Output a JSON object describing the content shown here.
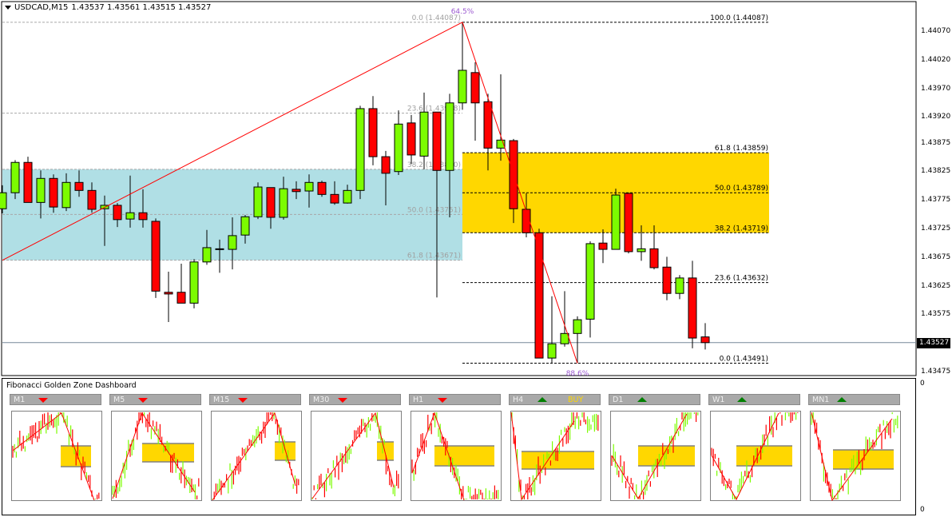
{
  "header": {
    "symbol": "USDCAD,M15",
    "ohlc": "1.43537 1.43561 1.43515 1.43527"
  },
  "colors": {
    "bull": "#7cfc00",
    "bear": "#ff0000",
    "zone_left": "#b0dfe5",
    "zone_right": "#ffd700",
    "zigzag": "#ff0000",
    "percent_label": "#9b59d0"
  },
  "chart_data": {
    "type": "candlestick",
    "symbol": "USDCAD",
    "timeframe": "M15",
    "ylim": [
      1.43462,
      1.44098
    ],
    "y_ticks": [
      "1.44070",
      "1.44020",
      "1.43970",
      "1.43920",
      "1.43875",
      "1.43825",
      "1.43775",
      "1.43725",
      "1.43675",
      "1.43625",
      "1.43575",
      "1.43475"
    ],
    "current_price": "1.43527",
    "candles": [
      [
        1.43761,
        1.43802,
        1.43753,
        1.43789
      ],
      [
        1.43789,
        1.43846,
        1.43778,
        1.43842
      ],
      [
        1.43842,
        1.43852,
        1.43772,
        1.43772
      ],
      [
        1.43772,
        1.43828,
        1.43744,
        1.43814
      ],
      [
        1.43814,
        1.43821,
        1.43754,
        1.43764
      ],
      [
        1.43763,
        1.43823,
        1.43757,
        1.43807
      ],
      [
        1.43807,
        1.43828,
        1.43782,
        1.43793
      ],
      [
        1.43793,
        1.43807,
        1.43754,
        1.4376
      ],
      [
        1.43761,
        1.43784,
        1.43696,
        1.43767
      ],
      [
        1.43767,
        1.43771,
        1.43729,
        1.43742
      ],
      [
        1.43743,
        1.43819,
        1.43728,
        1.43754
      ],
      [
        1.43754,
        1.43795,
        1.43728,
        1.43742
      ],
      [
        1.43739,
        1.43744,
        1.43605,
        1.43617
      ],
      [
        1.43615,
        1.43651,
        1.43563,
        1.43612
      ],
      [
        1.43615,
        1.43665,
        1.43596,
        1.43596
      ],
      [
        1.43596,
        1.43673,
        1.43587,
        1.43668
      ],
      [
        1.43668,
        1.43724,
        1.43663,
        1.43693
      ],
      [
        1.43691,
        1.43707,
        1.43649,
        1.43691
      ],
      [
        1.4369,
        1.43746,
        1.43655,
        1.43714
      ],
      [
        1.43715,
        1.4375,
        1.437,
        1.43747
      ],
      [
        1.43747,
        1.43807,
        1.43743,
        1.43799
      ],
      [
        1.43798,
        1.43798,
        1.43726,
        1.43746
      ],
      [
        1.43746,
        1.43817,
        1.43742,
        1.43796
      ],
      [
        1.43795,
        1.43809,
        1.43778,
        1.43791
      ],
      [
        1.43792,
        1.43821,
        1.43763,
        1.43807
      ],
      [
        1.43807,
        1.4381,
        1.43782,
        1.43786
      ],
      [
        1.43786,
        1.43809,
        1.43768,
        1.43771
      ],
      [
        1.43771,
        1.43803,
        1.4377,
        1.43793
      ],
      [
        1.43793,
        1.43941,
        1.43778,
        1.43936
      ],
      [
        1.43936,
        1.43958,
        1.43837,
        1.43852
      ],
      [
        1.43852,
        1.43862,
        1.43767,
        1.43823
      ],
      [
        1.43826,
        1.43933,
        1.4382,
        1.43909
      ],
      [
        1.43911,
        1.43925,
        1.43839,
        1.43855
      ],
      [
        1.43853,
        1.43964,
        1.4383,
        1.4393
      ],
      [
        1.4393,
        1.4393,
        1.43606,
        1.43828
      ],
      [
        1.43828,
        1.43962,
        1.43746,
        1.43946
      ],
      [
        1.43946,
        1.44087,
        1.43934,
        1.44003
      ],
      [
        1.43999,
        1.44017,
        1.4388,
        1.43946
      ],
      [
        1.43948,
        1.43962,
        1.43828,
        1.43867
      ],
      [
        1.43867,
        1.43996,
        1.43845,
        1.43881
      ],
      [
        1.4388,
        1.43883,
        1.43736,
        1.43761
      ],
      [
        1.4376,
        1.43788,
        1.43711,
        1.43719
      ],
      [
        1.43719,
        1.43726,
        1.435,
        1.435
      ],
      [
        1.435,
        1.43608,
        1.43491,
        1.43525
      ],
      [
        1.43525,
        1.43617,
        1.4352,
        1.43543
      ],
      [
        1.43543,
        1.43573,
        1.43491,
        1.43567
      ],
      [
        1.43568,
        1.43704,
        1.43536,
        1.437
      ],
      [
        1.43701,
        1.43725,
        1.43666,
        1.4369
      ],
      [
        1.4369,
        1.43796,
        1.4369,
        1.43785
      ],
      [
        1.43788,
        1.43788,
        1.43683,
        1.43686
      ],
      [
        1.43686,
        1.43732,
        1.4367,
        1.43691
      ],
      [
        1.43691,
        1.43732,
        1.43655,
        1.43658
      ],
      [
        1.43659,
        1.43677,
        1.43601,
        1.43613
      ],
      [
        1.43613,
        1.43645,
        1.43603,
        1.4364
      ],
      [
        1.4364,
        1.4367,
        1.43517,
        1.43535
      ],
      [
        1.43537,
        1.43561,
        1.43515,
        1.43527
      ]
    ],
    "fib_left": {
      "levels": [
        {
          "label": "0.0 (1.44087)",
          "price": 1.44087
        },
        {
          "label": "23.6 (1.43928)",
          "price": 1.43928
        },
        {
          "label": "38.2 (1.43830)",
          "price": 1.4383
        },
        {
          "label": "50.0 (1.43751)",
          "price": 1.43751
        },
        {
          "label": "61.8 (1.43671)",
          "price": 1.43671
        }
      ],
      "zone": [
        1.43671,
        1.4383
      ]
    },
    "fib_right": {
      "levels": [
        {
          "label": "100.0 (1.44087)",
          "price": 1.44087
        },
        {
          "label": "61.8 (1.43859)",
          "price": 1.43859
        },
        {
          "label": "50.0 (1.43789)",
          "price": 1.43789
        },
        {
          "label": "38.2 (1.43719)",
          "price": 1.43719
        },
        {
          "label": "23.6 (1.43632)",
          "price": 1.43632
        },
        {
          "label": "0.0 (1.43491)",
          "price": 1.43491
        }
      ],
      "zone": [
        1.43719,
        1.43859
      ]
    },
    "zigzag_labels": {
      "top": "64.5%",
      "bottom": "88.6%"
    }
  },
  "dashboard": {
    "title": "Fibonacci Golden Zone Dashboard",
    "axis_zero_top": "0",
    "axis_zero_bottom": "0",
    "panels": [
      {
        "label": "M1",
        "signal": "down",
        "text": ""
      },
      {
        "label": "M5",
        "signal": "down",
        "text": ""
      },
      {
        "label": "M15",
        "signal": "down",
        "text": ""
      },
      {
        "label": "M30",
        "signal": "down",
        "text": ""
      },
      {
        "label": "H1",
        "signal": "down",
        "text": ""
      },
      {
        "label": "H4",
        "signal": "up",
        "text": "BUY"
      },
      {
        "label": "D1",
        "signal": "up",
        "text": ""
      },
      {
        "label": "W1",
        "signal": "up",
        "text": ""
      },
      {
        "label": "MN1",
        "signal": "up",
        "text": ""
      }
    ]
  }
}
